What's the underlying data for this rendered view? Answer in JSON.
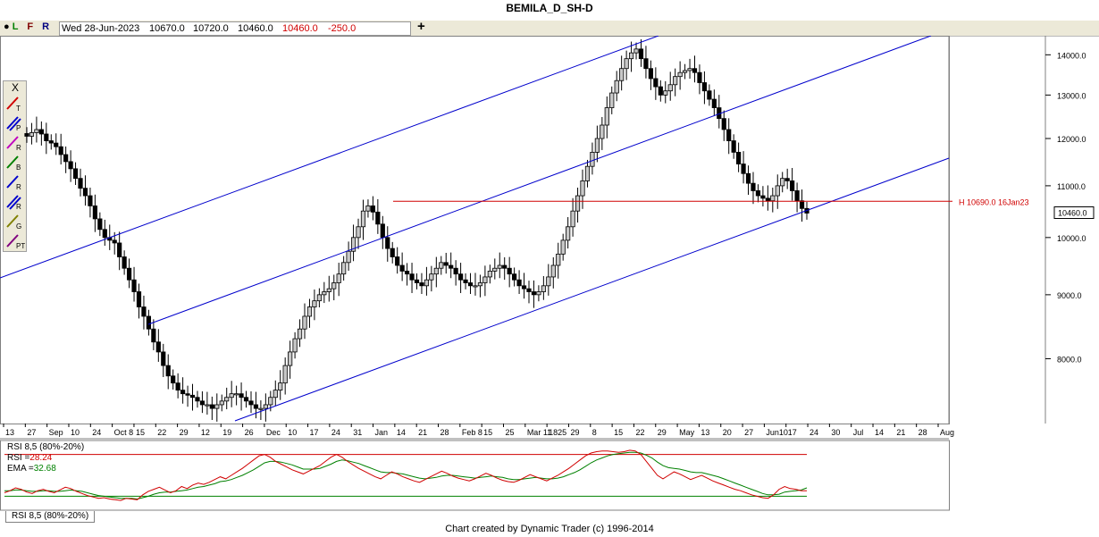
{
  "window": {
    "title": "BEMILA_D_SH-D"
  },
  "info_bar": {
    "flags": [
      "L",
      "F",
      "R"
    ],
    "date": "Wed 28-Jun-2023",
    "open": "10670.0",
    "high": "10720.0",
    "low": "10460.0",
    "close": "10460.0",
    "change": "-250.0",
    "plus_icon": "plus-icon"
  },
  "toolbox": {
    "close_label": "X",
    "tools": [
      {
        "icon": "trend-line-icon",
        "letter": "T",
        "color": "#d00000"
      },
      {
        "icon": "parallel-channel-icon",
        "letter": "P",
        "color": "#0000cc"
      },
      {
        "icon": "ratio-icon",
        "letter": "R",
        "color": "#c000c0"
      },
      {
        "icon": "time-band-icon",
        "letter": "B",
        "color": "#008000"
      },
      {
        "icon": "retracement-icon",
        "letter": "R",
        "color": "#0000cc"
      },
      {
        "icon": "ratio-fan-icon",
        "letter": "R",
        "color": "#0000cc"
      },
      {
        "icon": "gann-fan-icon",
        "letter": "G",
        "color": "#808000"
      },
      {
        "icon": "price-time-icon",
        "letter": "PT",
        "color": "#800080"
      }
    ]
  },
  "chart_data": [
    {
      "type": "candlestick",
      "title": "BEMILA_D_SH-D",
      "y_axis": {
        "ticks": [
          8000,
          9000,
          10000,
          11000,
          12000,
          13000,
          14000
        ],
        "tick_labels": [
          "8000.0",
          "9000.0",
          "10000.0",
          "11000.0",
          "12000.0",
          "13000.0",
          "14000.0"
        ],
        "range": [
          7100,
          14500
        ],
        "scale": "log"
      },
      "x_axis": {
        "tick_labels": [
          "13",
          "27",
          "Sep",
          "10",
          "24",
          "Oct 8",
          "15",
          "22",
          "29",
          "12",
          "19",
          "26",
          "Dec",
          "10",
          "17",
          "24",
          "31",
          "Jan",
          "14",
          "21",
          "28",
          "Feb 8",
          "15",
          "25",
          "Mar 11",
          "1825",
          "29",
          "8",
          "15",
          "22",
          "29",
          "May",
          "13",
          "20",
          "27",
          "Jun10",
          "17",
          "24",
          "30",
          "Jul",
          "14",
          "21",
          "28",
          "Aug"
        ]
      },
      "current_price": 10460,
      "current_price_label": "10460.0",
      "horizontal_line": {
        "value": 10690,
        "label": "H 10690.0 16Jan23",
        "color": "#d00000"
      },
      "channel_color": "#0000cc",
      "price_path": [
        12050,
        12130,
        12200,
        12100,
        11950,
        11900,
        11820,
        11650,
        11500,
        11350,
        11150,
        10950,
        10800,
        10600,
        10350,
        10150,
        10000,
        9950,
        9900,
        9650,
        9450,
        9250,
        9050,
        8800,
        8650,
        8450,
        8250,
        8100,
        7900,
        7750,
        7650,
        7550,
        7500,
        7480,
        7450,
        7400,
        7350,
        7350,
        7300,
        7350,
        7400,
        7450,
        7500,
        7500,
        7450,
        7400,
        7350,
        7300,
        7300,
        7350,
        7450,
        7550,
        7650,
        7900,
        8100,
        8300,
        8450,
        8650,
        8800,
        8900,
        9000,
        9050,
        9100,
        9200,
        9350,
        9550,
        9750,
        10000,
        10200,
        10500,
        10600,
        10480,
        10250,
        10000,
        9800,
        9650,
        9500,
        9400,
        9350,
        9250,
        9200,
        9150,
        9250,
        9350,
        9450,
        9550,
        9500,
        9450,
        9350,
        9250,
        9200,
        9150,
        9150,
        9200,
        9300,
        9400,
        9450,
        9500,
        9450,
        9350,
        9250,
        9150,
        9100,
        9050,
        9000,
        9050,
        9150,
        9300,
        9500,
        9700,
        9950,
        10200,
        10500,
        10800,
        11100,
        11400,
        11700,
        12000,
        12300,
        12700,
        13050,
        13350,
        13650,
        13900,
        14050,
        14150,
        13900,
        13650,
        13400,
        13200,
        13000,
        13100,
        13250,
        13450,
        13550,
        13600,
        13650,
        13550,
        13300,
        13100,
        12900,
        12700,
        12450,
        12200,
        11950,
        11700,
        11450,
        11250,
        11050,
        10900,
        10800,
        10750,
        10700,
        10800,
        11000,
        11150,
        11100,
        10900,
        10700,
        10550,
        10460
      ]
    },
    {
      "type": "line",
      "title": "RSI 8,5 (80%-20%)",
      "series": [
        {
          "name": "RSI",
          "value_label": "28.24",
          "color": "#d00000"
        },
        {
          "name": "EMA",
          "value_label": "32.68",
          "color": "#008000"
        }
      ],
      "upper_band": 80,
      "lower_band": 20,
      "ylim": [
        0,
        100
      ],
      "rsi_path": [
        25,
        28,
        32,
        30,
        26,
        24,
        28,
        30,
        27,
        25,
        29,
        33,
        31,
        27,
        24,
        21,
        19,
        17,
        18,
        16,
        15,
        14,
        17,
        16,
        15,
        22,
        27,
        30,
        33,
        29,
        25,
        28,
        34,
        31,
        36,
        39,
        37,
        40,
        44,
        48,
        45,
        50,
        55,
        60,
        66,
        72,
        78,
        80,
        76,
        70,
        66,
        62,
        58,
        55,
        52,
        56,
        60,
        64,
        70,
        76,
        80,
        76,
        70,
        65,
        60,
        56,
        52,
        48,
        45,
        50,
        55,
        52,
        48,
        45,
        42,
        40,
        44,
        48,
        52,
        56,
        53,
        49,
        46,
        44,
        42,
        45,
        49,
        53,
        50,
        46,
        43,
        41,
        40,
        43,
        47,
        51,
        48,
        45,
        42,
        46,
        50,
        55,
        60,
        66,
        72,
        78,
        82,
        84,
        85,
        85,
        84,
        83,
        84,
        86,
        85,
        80,
        70,
        60,
        50,
        45,
        50,
        55,
        52,
        48,
        44,
        47,
        50,
        46,
        42,
        39,
        36,
        33,
        30,
        28,
        25,
        22,
        20,
        18,
        17,
        22,
        30,
        34,
        31,
        30,
        28,
        28
      ],
      "ema_path": [
        28,
        28,
        29,
        29,
        28,
        27,
        27,
        28,
        28,
        27,
        27,
        28,
        29,
        28,
        27,
        25,
        23,
        21,
        20,
        19,
        18,
        17,
        17,
        17,
        16,
        18,
        20,
        23,
        25,
        26,
        26,
        27,
        28,
        29,
        31,
        33,
        34,
        36,
        38,
        41,
        42,
        44,
        47,
        50,
        54,
        58,
        63,
        68,
        70,
        70,
        69,
        67,
        65,
        62,
        59,
        59,
        59,
        60,
        63,
        66,
        70,
        72,
        71,
        69,
        67,
        64,
        61,
        58,
        55,
        54,
        54,
        53,
        52,
        50,
        48,
        46,
        45,
        46,
        47,
        49,
        50,
        50,
        49,
        48,
        47,
        46,
        47,
        48,
        49,
        48,
        47,
        45,
        44,
        44,
        45,
        46,
        47,
        46,
        45,
        45,
        46,
        48,
        51,
        54,
        58,
        63,
        68,
        72,
        75,
        78,
        80,
        81,
        82,
        83,
        83,
        82,
        79,
        75,
        69,
        64,
        61,
        60,
        59,
        57,
        55,
        54,
        54,
        52,
        50,
        48,
        45,
        42,
        39,
        36,
        33,
        30,
        27,
        24,
        22,
        22,
        23,
        26,
        27,
        28,
        29,
        32
      ]
    }
  ],
  "footer": {
    "credit": "Chart created by Dynamic Trader  (c) 1996-2014",
    "rsi_tab": "RSI 8,5 (80%-20%)"
  }
}
